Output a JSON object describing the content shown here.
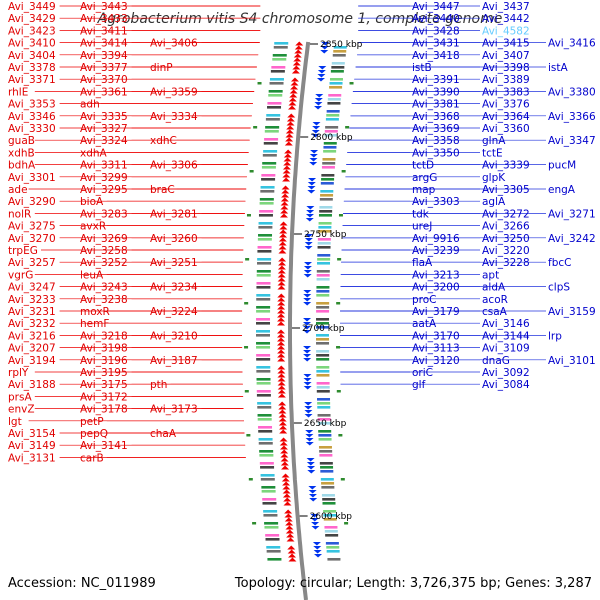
{
  "title": "Agrobacterium vitis S4 chromosome 1, complete genome",
  "accession": "Accession: NC_011989",
  "topology": "Topology: circular; Length: 3,726,375 bp; Genes: 3,287",
  "colors": {
    "forward_label": "#e00000",
    "reverse_label": "#0000cc",
    "highlight_label": "#66ccff",
    "backbone": "#888888"
  },
  "kbp_ticks": [
    "2850 kbp",
    "2800 kbp",
    "2750 kbp",
    "2700 kbp",
    "2650 kbp",
    "2600 kbp"
  ],
  "left_labels": [
    "Avi_3449",
    "Avi_3443",
    "Avi_3429",
    "Avi_3433",
    "Avi_3423",
    "Avi_3411",
    "Avi_3410",
    "Avi_3414",
    "Avi_3406",
    "Avi_3404",
    "Avi_3394",
    "Avi_3378",
    "Avi_3377",
    "dinP",
    "Avi_3371",
    "Avi_3370",
    "rhlE",
    "Avi_3361",
    "Avi_3359",
    "Avi_3353",
    "adh",
    "Avi_3346",
    "Avi_3335",
    "Avi_3334",
    "Avi_3330",
    "Avi_3327",
    "guaB",
    "Avi_3324",
    "xdhC",
    "xdhB",
    "xdhA",
    "bdhA",
    "Avi_3311",
    "Avi_3306",
    "Avi_3301",
    "Avi_3299",
    "ade",
    "Avi_3295",
    "braC",
    "Avi_3290",
    "bioA",
    "nolR",
    "Avi_3283",
    "Avi_3281",
    "Avi_3275",
    "avxR",
    "Avi_3270",
    "Avi_3269",
    "Avi_3260",
    "trpEG",
    "Avi_3258",
    "Avi_3257",
    "Avi_3252",
    "Avi_3251",
    "vgrG",
    "leuA",
    "Avi_3247",
    "Avi_3243",
    "Avi_3234",
    "Avi_3233",
    "Avi_3238",
    "Avi_3231",
    "moxR",
    "Avi_3224",
    "Avi_3232",
    "hemF",
    "Avi_3216",
    "Avi_3218",
    "Avi_3210",
    "Avi_3207",
    "Avi_3198",
    "Avi_3194",
    "Avi_3196",
    "Avi_3187",
    "rplY",
    "Avi_3195",
    "Avi_3188",
    "Avi_3175",
    "pth",
    "prsA",
    "Avi_3172",
    "envZ",
    "Avi_3178",
    "Avi_3173",
    "lgt",
    "petP",
    "Avi_3154",
    "pepQ",
    "chaA",
    "Avi_3149",
    "Avi_3141",
    "Avi_3131",
    "carB"
  ],
  "right_labels": [
    "Avi_3447",
    "Avi_3437",
    "Avi_3440",
    "Avi_3442",
    "Avi_3428",
    "Avi_4582",
    "Avi_3431",
    "Avi_3415",
    "Avi_3416",
    "Avi_3418",
    "Avi_3407",
    "istB",
    "Avi_3398",
    "istA",
    "Avi_3391",
    "Avi_3389",
    "Avi_3390",
    "Avi_3383",
    "Avi_3380",
    "Avi_3381",
    "Avi_3376",
    "Avi_3368",
    "Avi_3364",
    "Avi_3366",
    "Avi_3369",
    "Avi_3360",
    "Avi_3358",
    "glnA",
    "Avi_3347",
    "Avi_3350",
    "tctE",
    "tctD",
    "Avi_3339",
    "pucM",
    "argG",
    "glpK",
    "map",
    "Avi_3305",
    "engA",
    "Avi_3303",
    "aglA",
    "tdk",
    "Avi_3272",
    "Avi_3271",
    "ureJ",
    "Avi_3266",
    "Avi_9916",
    "Avi_3250",
    "Avi_3242",
    "Avi_3239",
    "Avi_3220",
    "flaA",
    "Avi_3228",
    "fbcC",
    "Avi_3213",
    "apt",
    "Avi_3200",
    "aldA",
    "clpS",
    "proC",
    "acoR",
    "Avi_3179",
    "csaA",
    "Avi_3159",
    "aatA",
    "Avi_3146",
    "Avi_3170",
    "Avi_3144",
    "lrp",
    "Avi_3113",
    "Avi_3109",
    "Avi_3120",
    "dnaG",
    "Avi_3101",
    "oriC",
    "Avi_3092",
    "glf",
    "Avi_3084"
  ]
}
